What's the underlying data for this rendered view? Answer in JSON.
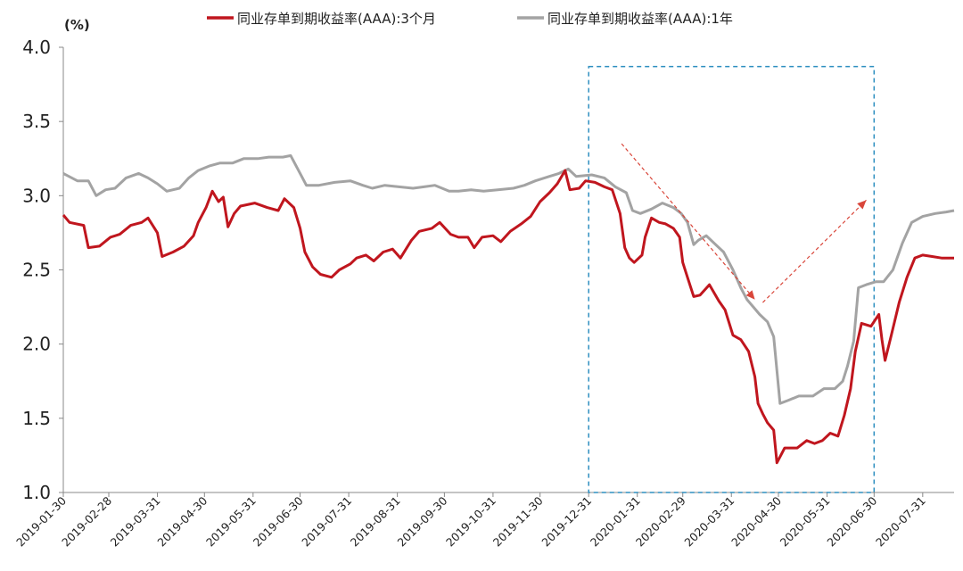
{
  "chart_data": {
    "type": "line",
    "title": "",
    "unit_label": "(%)",
    "xlabel": "",
    "ylabel": "",
    "ylim": [
      1.0,
      4.0
    ],
    "yticks": [
      "1.0",
      "1.5",
      "2.0",
      "2.5",
      "3.0",
      "3.5",
      "4.0"
    ],
    "grid": false,
    "legend_position": "top",
    "x_range": [
      "2019-01-30",
      "2020-08-20"
    ],
    "x_tick_labels": [
      "2019-01-30",
      "2019-02-28",
      "2019-03-31",
      "2019-04-30",
      "2019-05-31",
      "2019-06-30",
      "2019-07-31",
      "2019-08-31",
      "2019-09-30",
      "2019-10-31",
      "2019-11-30",
      "2019-12-31",
      "2020-01-31",
      "2020-02-29",
      "2020-03-31",
      "2020-04-30",
      "2020-05-31",
      "2020-06-30",
      "2020-07-31"
    ],
    "highlight_box": {
      "x": [
        "2019-12-31",
        "2020-06-30"
      ],
      "y": [
        1.0,
        3.87
      ],
      "color": "#2e8fc0"
    },
    "arrows": [
      {
        "from": [
          "2020-01-21",
          3.35
        ],
        "to": [
          "2020-04-15",
          2.3
        ],
        "color": "#d9463a"
      },
      {
        "from": [
          "2020-04-20",
          2.28
        ],
        "to": [
          "2020-06-25",
          2.97
        ],
        "color": "#d9463a"
      }
    ],
    "series": [
      {
        "name": "同业存单到期收益率(AAA):3个月",
        "color": "#c0161e",
        "points": [
          [
            "2019-01-30",
            2.87
          ],
          [
            "2019-02-03",
            2.82
          ],
          [
            "2019-02-12",
            2.8
          ],
          [
            "2019-02-15",
            2.65
          ],
          [
            "2019-02-22",
            2.66
          ],
          [
            "2019-03-01",
            2.72
          ],
          [
            "2019-03-07",
            2.74
          ],
          [
            "2019-03-14",
            2.8
          ],
          [
            "2019-03-21",
            2.82
          ],
          [
            "2019-03-25",
            2.85
          ],
          [
            "2019-03-31",
            2.75
          ],
          [
            "2019-04-03",
            2.59
          ],
          [
            "2019-04-10",
            2.62
          ],
          [
            "2019-04-17",
            2.66
          ],
          [
            "2019-04-23",
            2.73
          ],
          [
            "2019-04-26",
            2.82
          ],
          [
            "2019-05-01",
            2.92
          ],
          [
            "2019-05-05",
            3.03
          ],
          [
            "2019-05-09",
            2.96
          ],
          [
            "2019-05-12",
            2.99
          ],
          [
            "2019-05-15",
            2.79
          ],
          [
            "2019-05-19",
            2.88
          ],
          [
            "2019-05-23",
            2.93
          ],
          [
            "2019-06-01",
            2.95
          ],
          [
            "2019-06-09",
            2.92
          ],
          [
            "2019-06-16",
            2.9
          ],
          [
            "2019-06-20",
            2.98
          ],
          [
            "2019-06-26",
            2.92
          ],
          [
            "2019-06-30",
            2.78
          ],
          [
            "2019-07-03",
            2.62
          ],
          [
            "2019-07-08",
            2.52
          ],
          [
            "2019-07-13",
            2.47
          ],
          [
            "2019-07-20",
            2.45
          ],
          [
            "2019-07-25",
            2.5
          ],
          [
            "2019-08-01",
            2.54
          ],
          [
            "2019-08-05",
            2.58
          ],
          [
            "2019-08-11",
            2.6
          ],
          [
            "2019-08-16",
            2.56
          ],
          [
            "2019-08-22",
            2.62
          ],
          [
            "2019-08-28",
            2.64
          ],
          [
            "2019-09-02",
            2.58
          ],
          [
            "2019-09-09",
            2.7
          ],
          [
            "2019-09-14",
            2.76
          ],
          [
            "2019-09-22",
            2.78
          ],
          [
            "2019-09-27",
            2.82
          ],
          [
            "2019-10-04",
            2.74
          ],
          [
            "2019-10-09",
            2.72
          ],
          [
            "2019-10-15",
            2.72
          ],
          [
            "2019-10-19",
            2.65
          ],
          [
            "2019-10-24",
            2.72
          ],
          [
            "2019-10-31",
            2.73
          ],
          [
            "2019-11-05",
            2.69
          ],
          [
            "2019-11-11",
            2.76
          ],
          [
            "2019-11-18",
            2.81
          ],
          [
            "2019-11-24",
            2.86
          ],
          [
            "2019-11-30",
            2.96
          ],
          [
            "2019-12-06",
            3.02
          ],
          [
            "2019-12-11",
            3.08
          ],
          [
            "2019-12-16",
            3.17
          ],
          [
            "2019-12-19",
            3.04
          ],
          [
            "2019-12-25",
            3.05
          ],
          [
            "2019-12-29",
            3.1
          ],
          [
            "2020-01-04",
            3.09
          ],
          [
            "2020-01-10",
            3.06
          ],
          [
            "2020-01-15",
            3.04
          ],
          [
            "2020-01-20",
            2.88
          ],
          [
            "2020-01-23",
            2.65
          ],
          [
            "2020-01-26",
            2.58
          ],
          [
            "2020-01-29",
            2.55
          ],
          [
            "2020-02-03",
            2.6
          ],
          [
            "2020-02-05",
            2.72
          ],
          [
            "2020-02-09",
            2.85
          ],
          [
            "2020-02-14",
            2.82
          ],
          [
            "2020-02-18",
            2.81
          ],
          [
            "2020-02-23",
            2.78
          ],
          [
            "2020-02-27",
            2.72
          ],
          [
            "2020-02-29",
            2.55
          ],
          [
            "2020-03-03",
            2.45
          ],
          [
            "2020-03-07",
            2.32
          ],
          [
            "2020-03-11",
            2.33
          ],
          [
            "2020-03-17",
            2.4
          ],
          [
            "2020-03-23",
            2.29
          ],
          [
            "2020-03-27",
            2.23
          ],
          [
            "2020-04-01",
            2.06
          ],
          [
            "2020-04-06",
            2.03
          ],
          [
            "2020-04-11",
            1.95
          ],
          [
            "2020-04-15",
            1.78
          ],
          [
            "2020-04-17",
            1.6
          ],
          [
            "2020-04-20",
            1.53
          ],
          [
            "2020-04-23",
            1.47
          ],
          [
            "2020-04-27",
            1.42
          ],
          [
            "2020-04-29",
            1.2
          ],
          [
            "2020-05-04",
            1.3
          ],
          [
            "2020-05-12",
            1.3
          ],
          [
            "2020-05-18",
            1.35
          ],
          [
            "2020-05-23",
            1.33
          ],
          [
            "2020-05-28",
            1.35
          ],
          [
            "2020-06-02",
            1.4
          ],
          [
            "2020-06-07",
            1.38
          ],
          [
            "2020-06-11",
            1.52
          ],
          [
            "2020-06-15",
            1.7
          ],
          [
            "2020-06-18",
            1.95
          ],
          [
            "2020-06-22",
            2.14
          ],
          [
            "2020-06-28",
            2.12
          ],
          [
            "2020-07-03",
            2.2
          ],
          [
            "2020-07-05",
            2.03
          ],
          [
            "2020-07-07",
            1.89
          ],
          [
            "2020-07-11",
            2.06
          ],
          [
            "2020-07-16",
            2.28
          ],
          [
            "2020-07-21",
            2.45
          ],
          [
            "2020-07-26",
            2.58
          ],
          [
            "2020-07-31",
            2.6
          ],
          [
            "2020-08-06",
            2.59
          ],
          [
            "2020-08-12",
            2.58
          ],
          [
            "2020-08-20",
            2.58
          ]
        ]
      },
      {
        "name": "同业存单到期收益率(AAA):1年",
        "color": "#a3a3a3",
        "points": [
          [
            "2019-01-30",
            3.15
          ],
          [
            "2019-02-08",
            3.1
          ],
          [
            "2019-02-15",
            3.1
          ],
          [
            "2019-02-20",
            3.0
          ],
          [
            "2019-02-26",
            3.04
          ],
          [
            "2019-03-04",
            3.05
          ],
          [
            "2019-03-11",
            3.12
          ],
          [
            "2019-03-19",
            3.15
          ],
          [
            "2019-03-25",
            3.12
          ],
          [
            "2019-03-31",
            3.08
          ],
          [
            "2019-04-06",
            3.03
          ],
          [
            "2019-04-14",
            3.05
          ],
          [
            "2019-04-20",
            3.12
          ],
          [
            "2019-04-26",
            3.17
          ],
          [
            "2019-05-03",
            3.2
          ],
          [
            "2019-05-10",
            3.22
          ],
          [
            "2019-05-18",
            3.22
          ],
          [
            "2019-05-25",
            3.25
          ],
          [
            "2019-06-03",
            3.25
          ],
          [
            "2019-06-10",
            3.26
          ],
          [
            "2019-06-19",
            3.26
          ],
          [
            "2019-06-24",
            3.27
          ],
          [
            "2019-06-30",
            3.15
          ],
          [
            "2019-07-04",
            3.07
          ],
          [
            "2019-07-12",
            3.07
          ],
          [
            "2019-07-22",
            3.09
          ],
          [
            "2019-08-01",
            3.1
          ],
          [
            "2019-08-09",
            3.07
          ],
          [
            "2019-08-15",
            3.05
          ],
          [
            "2019-08-23",
            3.07
          ],
          [
            "2019-09-01",
            3.06
          ],
          [
            "2019-09-10",
            3.05
          ],
          [
            "2019-09-17",
            3.06
          ],
          [
            "2019-09-24",
            3.07
          ],
          [
            "2019-10-03",
            3.03
          ],
          [
            "2019-10-09",
            3.03
          ],
          [
            "2019-10-17",
            3.04
          ],
          [
            "2019-10-25",
            3.03
          ],
          [
            "2019-11-03",
            3.04
          ],
          [
            "2019-11-13",
            3.05
          ],
          [
            "2019-11-20",
            3.07
          ],
          [
            "2019-11-27",
            3.1
          ],
          [
            "2019-12-06",
            3.13
          ],
          [
            "2019-12-12",
            3.15
          ],
          [
            "2019-12-18",
            3.18
          ],
          [
            "2019-12-23",
            3.13
          ],
          [
            "2020-01-02",
            3.14
          ],
          [
            "2020-01-10",
            3.12
          ],
          [
            "2020-01-17",
            3.06
          ],
          [
            "2020-01-24",
            3.02
          ],
          [
            "2020-01-28",
            2.9
          ],
          [
            "2020-02-02",
            2.88
          ],
          [
            "2020-02-09",
            2.91
          ],
          [
            "2020-02-16",
            2.95
          ],
          [
            "2020-02-23",
            2.92
          ],
          [
            "2020-02-28",
            2.88
          ],
          [
            "2020-03-03",
            2.82
          ],
          [
            "2020-03-07",
            2.67
          ],
          [
            "2020-03-10",
            2.7
          ],
          [
            "2020-03-15",
            2.73
          ],
          [
            "2020-03-20",
            2.68
          ],
          [
            "2020-03-26",
            2.62
          ],
          [
            "2020-04-01",
            2.5
          ],
          [
            "2020-04-06",
            2.38
          ],
          [
            "2020-04-10",
            2.3
          ],
          [
            "2020-04-14",
            2.25
          ],
          [
            "2020-04-18",
            2.2
          ],
          [
            "2020-04-23",
            2.15
          ],
          [
            "2020-04-27",
            2.05
          ],
          [
            "2020-05-01",
            1.6
          ],
          [
            "2020-05-06",
            1.62
          ],
          [
            "2020-05-13",
            1.65
          ],
          [
            "2020-05-22",
            1.65
          ],
          [
            "2020-05-29",
            1.7
          ],
          [
            "2020-06-05",
            1.7
          ],
          [
            "2020-06-10",
            1.75
          ],
          [
            "2020-06-13",
            1.85
          ],
          [
            "2020-06-17",
            2.02
          ],
          [
            "2020-06-20",
            2.38
          ],
          [
            "2020-06-25",
            2.4
          ],
          [
            "2020-07-01",
            2.42
          ],
          [
            "2020-07-06",
            2.42
          ],
          [
            "2020-07-12",
            2.5
          ],
          [
            "2020-07-18",
            2.68
          ],
          [
            "2020-07-24",
            2.82
          ],
          [
            "2020-07-31",
            2.86
          ],
          [
            "2020-08-08",
            2.88
          ],
          [
            "2020-08-15",
            2.89
          ],
          [
            "2020-08-20",
            2.9
          ]
        ]
      }
    ]
  }
}
